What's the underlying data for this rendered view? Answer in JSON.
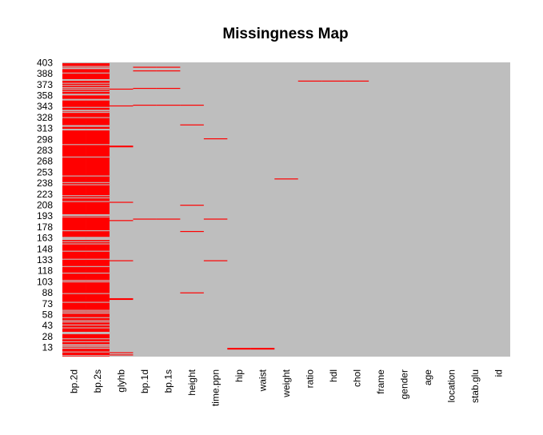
{
  "chart_data": {
    "type": "heatmap",
    "title": "Missingness Map",
    "xlabel": "",
    "ylabel": "",
    "colors": {
      "missing": "#ff0000",
      "observed": "#bebebe"
    },
    "n_rows": 403,
    "columns": [
      "bp.2d",
      "bp.2s",
      "glyhb",
      "bp.1d",
      "bp.1s",
      "height",
      "time.ppn",
      "hip",
      "waist",
      "weight",
      "ratio",
      "hdl",
      "chol",
      "frame",
      "gender",
      "age",
      "location",
      "stab.glu",
      "id"
    ],
    "y_tick_labels": [
      "403",
      "388",
      "373",
      "358",
      "343",
      "328",
      "313",
      "298",
      "283",
      "268",
      "253",
      "238",
      "223",
      "208",
      "193",
      "178",
      "163",
      "148",
      "133",
      "118",
      "103",
      "88",
      "73",
      "58",
      "43",
      "28",
      "13"
    ],
    "missing": {
      "bp.2d": "majority",
      "bp.2s": "majority",
      "glyhb": [
        3,
        6,
        79,
        80,
        132,
        187,
        212,
        288,
        289,
        344,
        367
      ],
      "bp.1d": [
        189,
        345,
        368,
        392,
        397
      ],
      "bp.1s": [
        189,
        345,
        368,
        392,
        397
      ],
      "height": [
        88,
        172,
        208,
        318,
        345
      ],
      "time.ppn": [
        132,
        189,
        299
      ],
      "hip": [
        11,
        12
      ],
      "waist": [
        11,
        12
      ],
      "weight": [
        244
      ],
      "ratio": [
        378
      ],
      "hdl": [
        378
      ],
      "chol": [
        378
      ],
      "frame": [],
      "gender": [],
      "age": [],
      "location": [],
      "stab.glu": [],
      "id": []
    }
  }
}
